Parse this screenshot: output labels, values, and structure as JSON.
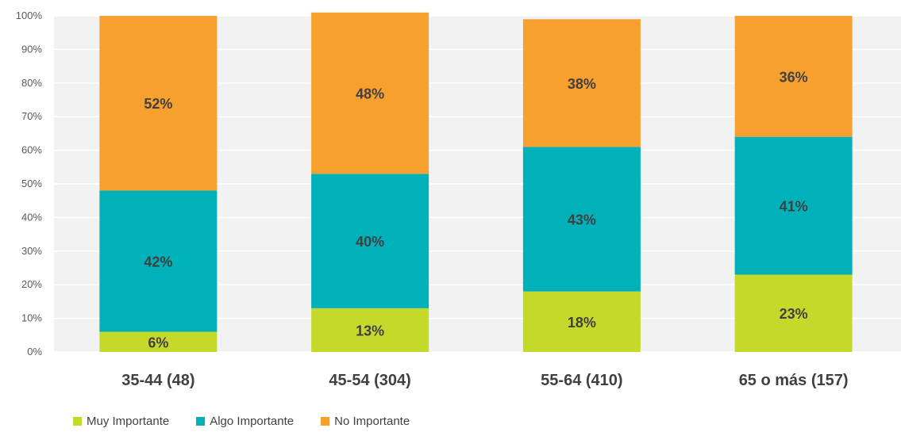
{
  "chart_data": {
    "type": "bar",
    "stacked": true,
    "categories": [
      "35-44 (48)",
      "45-54 (304)",
      "55-64 (410)",
      "65 o más (157)"
    ],
    "series": [
      {
        "name": "Muy Importante",
        "color": "#c5d92b",
        "values": [
          6,
          13,
          18,
          23
        ],
        "labels": [
          "6%",
          "13%",
          "18%",
          "23%"
        ]
      },
      {
        "name": "Algo Importante",
        "color": "#00b1b9",
        "values": [
          42,
          40,
          43,
          41
        ],
        "labels": [
          "42%",
          "40%",
          "43%",
          "41%"
        ]
      },
      {
        "name": "No Importante",
        "color": "#f7a030",
        "values": [
          52,
          48,
          38,
          36
        ],
        "labels": [
          "52%",
          "48%",
          "38%",
          "36%"
        ]
      }
    ],
    "yticks": [
      "0%",
      "10%",
      "20%",
      "30%",
      "40%",
      "50%",
      "60%",
      "70%",
      "80%",
      "90%",
      "100%"
    ],
    "ylim": [
      0,
      100
    ],
    "grid": true,
    "legend_position": "bottom-left"
  }
}
